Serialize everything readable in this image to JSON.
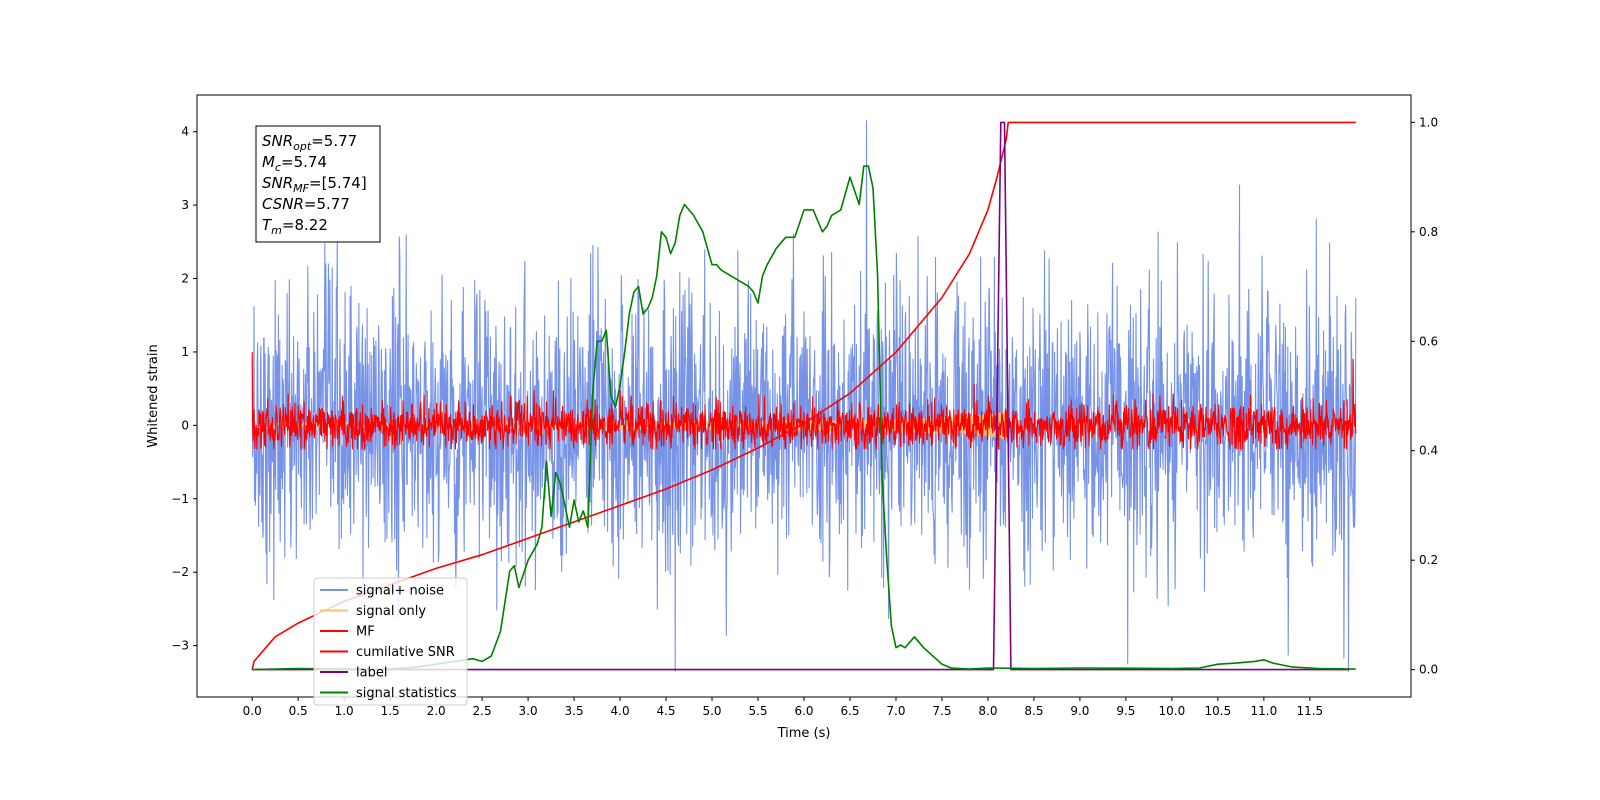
{
  "chart_data": {
    "type": "line",
    "title": "",
    "xlabel": "Time (s)",
    "ylabel": "Whitened strain",
    "y2label": "",
    "xlim": [
      -0.6,
      12.6
    ],
    "ylim": [
      -3.7,
      4.5
    ],
    "y2lim": [
      -0.05,
      1.05
    ],
    "xticks": [
      0.0,
      0.5,
      1.0,
      1.5,
      2.0,
      2.5,
      3.0,
      3.5,
      4.0,
      4.5,
      5.0,
      5.5,
      6.0,
      6.5,
      7.0,
      7.5,
      8.0,
      8.5,
      9.0,
      9.5,
      10.0,
      10.5,
      11.0,
      11.5
    ],
    "xtick_labels": [
      "0.0",
      "0.5",
      "1.0",
      "1.5",
      "2.0",
      "2.5",
      "3.0",
      "3.5",
      "4.0",
      "4.5",
      "5.0",
      "5.5",
      "6.0",
      "6.5",
      "7.0",
      "7.5",
      "8.0",
      "8.5",
      "9.0",
      "9.5",
      "10.0",
      "10.5",
      "11.0",
      "11.5"
    ],
    "yticks": [
      -3,
      -2,
      -1,
      0,
      1,
      2,
      3,
      4
    ],
    "ytick_labels": [
      "−3",
      "−2",
      "−1",
      "0",
      "1",
      "2",
      "3",
      "4"
    ],
    "y2ticks": [
      0.0,
      0.2,
      0.4,
      0.6,
      0.8,
      1.0
    ],
    "y2tick_labels": [
      "0.0",
      "0.2",
      "0.4",
      "0.6",
      "0.8",
      "1.0"
    ],
    "grid": false,
    "legend_position": "lower-left",
    "info_box": {
      "lines": [
        {
          "main": "SNR",
          "sub": "opt",
          "value": "=5.77"
        },
        {
          "main": "M",
          "sub": "c",
          "value": "=5.74"
        },
        {
          "main": "SNR",
          "sub": "MF",
          "value": "=[5.74]"
        },
        {
          "main": "CSNR",
          "sub": "",
          "value": "=5.77"
        },
        {
          "main": "T",
          "sub": "m",
          "value": "=8.22"
        }
      ]
    },
    "series": [
      {
        "name": "signal+ noise",
        "color": "#7793e8",
        "axis": "left",
        "style": "noise",
        "x_range": [
          0.0,
          12.0
        ],
        "sigma": 0.95,
        "ymin": -3.35,
        "ymax": 4.15,
        "spikes": [
          {
            "x": 4.6,
            "y": -3.35
          },
          {
            "x": 6.68,
            "y": 4.15
          },
          {
            "x": 9.52,
            "y": -3.25
          }
        ]
      },
      {
        "name": "signal only",
        "color": "#fbc26b",
        "axis": "left",
        "style": "chirp",
        "x_range": [
          0.0,
          8.22
        ],
        "amplitude": 0.2
      },
      {
        "name": "MF",
        "color": "#ff0000",
        "axis": "left",
        "style": "noise",
        "x_range": [
          0.0,
          12.0
        ],
        "sigma": 0.16,
        "ymin": -0.32,
        "ymax": 0.72,
        "spikes": [
          {
            "x": 0.0,
            "y": 1.0
          },
          {
            "x": 11.97,
            "y": 0.9
          }
        ]
      },
      {
        "name": "cumilative SNR",
        "color": "#ff0000",
        "axis": "right",
        "x": [
          0.0,
          0.02,
          0.25,
          0.5,
          1.0,
          1.5,
          2.0,
          2.5,
          3.0,
          3.5,
          4.0,
          4.5,
          5.0,
          5.5,
          6.0,
          6.5,
          7.0,
          7.5,
          7.8,
          8.0,
          8.1,
          8.2,
          8.22,
          8.5,
          9.0,
          10.0,
          11.0,
          11.5,
          12.0
        ],
        "values": [
          0.0,
          0.015,
          0.06,
          0.085,
          0.125,
          0.155,
          0.185,
          0.21,
          0.24,
          0.27,
          0.3,
          0.33,
          0.365,
          0.405,
          0.45,
          0.505,
          0.58,
          0.68,
          0.76,
          0.84,
          0.9,
          0.97,
          1.0,
          1.0,
          1.0,
          1.0,
          1.0,
          1.0,
          1.0
        ]
      },
      {
        "name": "label",
        "color": "#800080",
        "axis": "right",
        "x": [
          0.0,
          8.06,
          8.14,
          8.18,
          8.25,
          11.93
        ],
        "values": [
          0.0,
          0.0,
          1.0,
          1.0,
          0.0,
          0.0
        ]
      },
      {
        "name": "signal statistics",
        "color": "#008000",
        "axis": "right",
        "x": [
          0.0,
          0.5,
          1.0,
          1.5,
          1.8,
          2.0,
          2.2,
          2.4,
          2.5,
          2.6,
          2.7,
          2.8,
          2.85,
          2.9,
          3.0,
          3.1,
          3.15,
          3.2,
          3.25,
          3.3,
          3.35,
          3.4,
          3.45,
          3.5,
          3.55,
          3.6,
          3.65,
          3.7,
          3.75,
          3.8,
          3.85,
          3.9,
          3.95,
          4.0,
          4.05,
          4.1,
          4.15,
          4.2,
          4.25,
          4.3,
          4.35,
          4.4,
          4.45,
          4.5,
          4.55,
          4.6,
          4.65,
          4.7,
          4.75,
          4.8,
          4.9,
          5.0,
          5.05,
          5.1,
          5.2,
          5.3,
          5.4,
          5.45,
          5.5,
          5.55,
          5.6,
          5.7,
          5.8,
          5.9,
          6.0,
          6.05,
          6.1,
          6.2,
          6.25,
          6.3,
          6.4,
          6.5,
          6.6,
          6.65,
          6.7,
          6.75,
          6.8,
          6.85,
          6.9,
          6.95,
          7.0,
          7.05,
          7.1,
          7.2,
          7.3,
          7.4,
          7.5,
          7.6,
          7.8,
          8.0,
          8.5,
          9.0,
          10.0,
          10.3,
          10.5,
          10.7,
          10.9,
          11.0,
          11.1,
          11.3,
          11.6,
          12.0
        ],
        "values": [
          0.0,
          0.002,
          0.001,
          0.001,
          0.005,
          0.01,
          0.015,
          0.02,
          0.015,
          0.025,
          0.07,
          0.18,
          0.19,
          0.15,
          0.2,
          0.23,
          0.26,
          0.38,
          0.28,
          0.36,
          0.34,
          0.3,
          0.26,
          0.31,
          0.27,
          0.29,
          0.26,
          0.5,
          0.6,
          0.6,
          0.62,
          0.5,
          0.48,
          0.52,
          0.58,
          0.65,
          0.69,
          0.7,
          0.65,
          0.66,
          0.68,
          0.72,
          0.8,
          0.79,
          0.76,
          0.78,
          0.83,
          0.85,
          0.84,
          0.83,
          0.8,
          0.74,
          0.74,
          0.73,
          0.72,
          0.71,
          0.7,
          0.69,
          0.67,
          0.72,
          0.74,
          0.77,
          0.79,
          0.79,
          0.84,
          0.84,
          0.84,
          0.8,
          0.81,
          0.83,
          0.84,
          0.9,
          0.85,
          0.92,
          0.92,
          0.88,
          0.72,
          0.35,
          0.2,
          0.08,
          0.04,
          0.045,
          0.04,
          0.06,
          0.04,
          0.025,
          0.01,
          0.003,
          0.001,
          0.003,
          0.002,
          0.003,
          0.002,
          0.003,
          0.01,
          0.012,
          0.015,
          0.018,
          0.012,
          0.005,
          0.002,
          0.001
        ]
      }
    ]
  }
}
